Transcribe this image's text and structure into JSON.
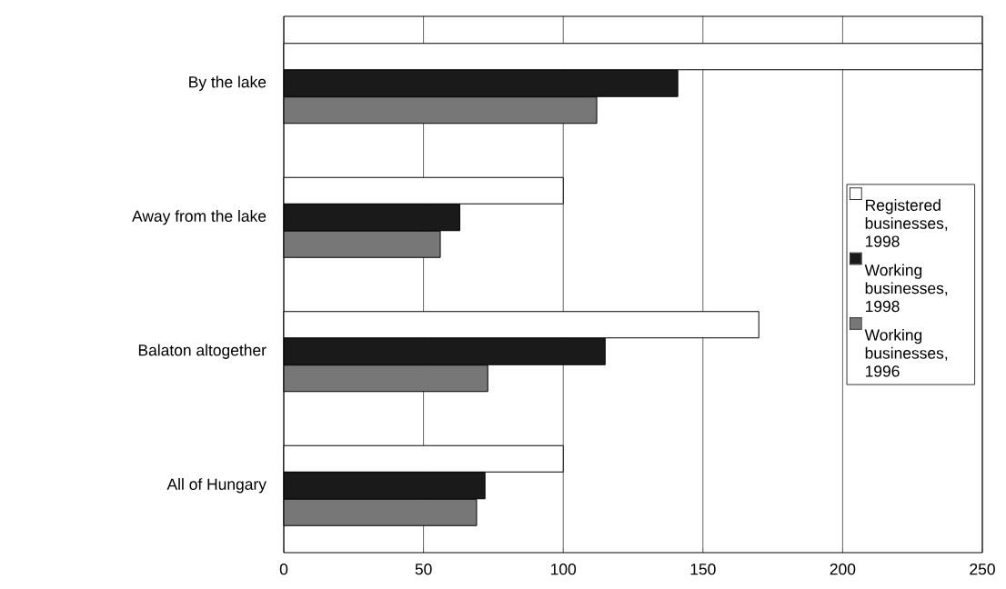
{
  "chart_data": {
    "type": "bar",
    "orientation": "horizontal",
    "categories": [
      "By the lake",
      "Away from the lake",
      "Balaton altogether",
      "All of Hungary"
    ],
    "series": [
      {
        "name": "Registered businesses, 1998",
        "color": "#ffffff",
        "values": [
          250,
          100,
          170,
          100
        ]
      },
      {
        "name": "Working businesses, 1998",
        "color": "#1a1a1a",
        "values": [
          141,
          63,
          115,
          72
        ]
      },
      {
        "name": "Working businesses, 1996",
        "color": "#777777",
        "values": [
          112,
          56,
          73,
          69
        ]
      }
    ],
    "xlim": [
      0,
      250
    ],
    "xticks": [
      0,
      50,
      100,
      150,
      200,
      250
    ],
    "grid": "x",
    "legend": "right"
  }
}
